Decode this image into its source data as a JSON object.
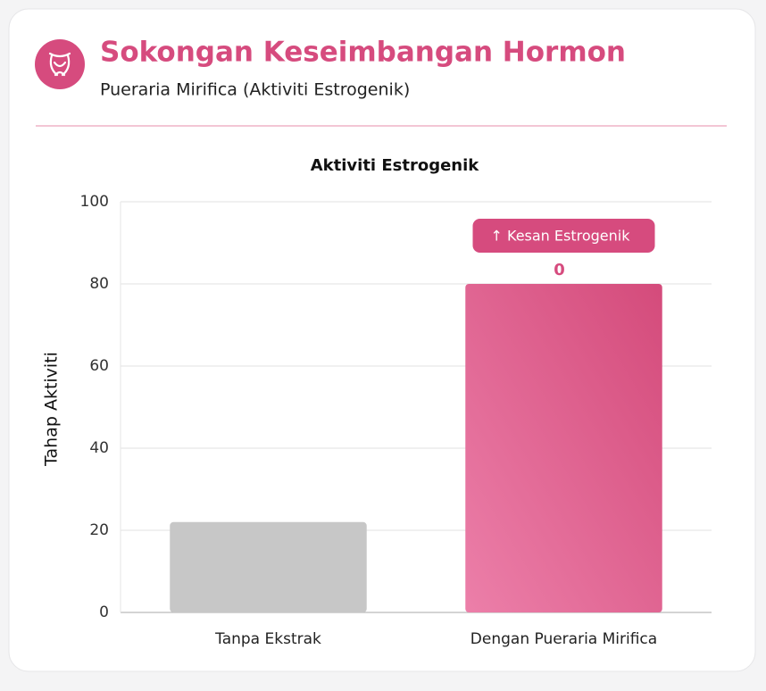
{
  "chart_data": {
    "type": "bar",
    "header_title": "Sokongan Keseimbangan Hormon",
    "header_subtitle": "Pueraria Mirifica (Aktiviti Estrogenik)",
    "title": "Aktiviti Estrogenik",
    "ylabel": "Tahap Aktiviti",
    "categories": [
      "Tanpa Ekstrak",
      "Dengan Pueraria Mirifica"
    ],
    "values": [
      22,
      80
    ],
    "colors": [
      "#c7c7c7",
      "#d9507f"
    ],
    "annotations": [
      "↑ Kesan Estrogenik",
      "0"
    ],
    "ylim": [
      0,
      100
    ],
    "yticks": [
      0,
      20,
      40,
      60,
      80,
      100
    ],
    "grid": true
  }
}
